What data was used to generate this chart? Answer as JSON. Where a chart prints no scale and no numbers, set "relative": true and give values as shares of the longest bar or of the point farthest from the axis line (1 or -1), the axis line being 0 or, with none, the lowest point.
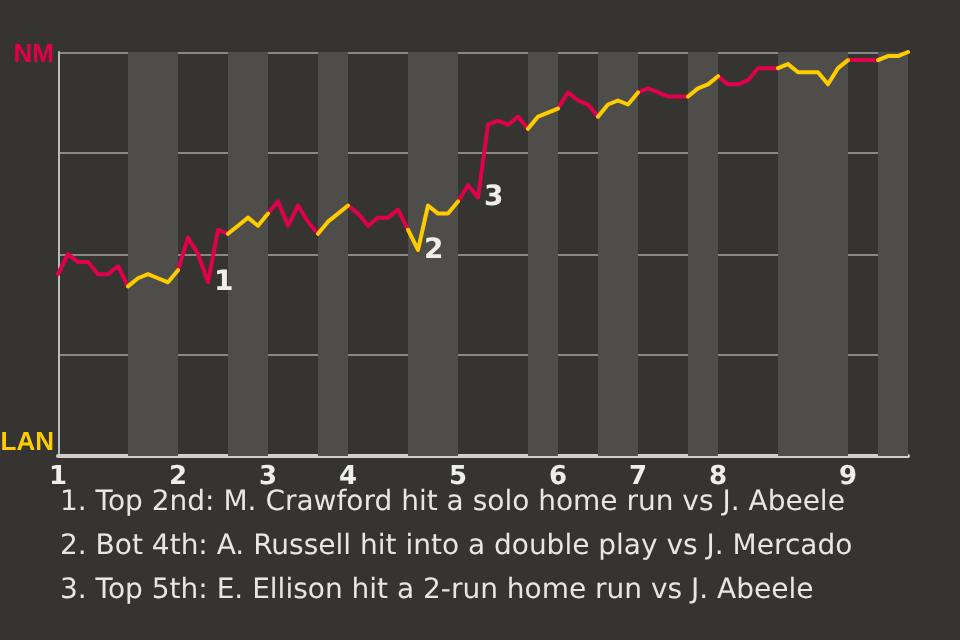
{
  "chart_data": {
    "type": "line",
    "relative": true,
    "categories": [
      "1",
      null,
      null,
      null,
      null,
      null,
      null,
      null,
      null,
      null,
      null,
      null,
      "2",
      null,
      null,
      null,
      null,
      null,
      null,
      null,
      null,
      "3",
      null,
      null,
      null,
      null,
      null,
      null,
      null,
      "4",
      null,
      null,
      null,
      null,
      null,
      null,
      null,
      null,
      null,
      null,
      "5",
      null,
      null,
      null,
      null,
      null,
      null,
      null,
      null,
      null,
      "6",
      null,
      null,
      null,
      null,
      null,
      null,
      null,
      "7",
      null,
      null,
      null,
      null,
      null,
      null,
      null,
      "8",
      null,
      null,
      null,
      null,
      null,
      null,
      null,
      null,
      null,
      null,
      null,
      null,
      "9",
      null,
      null,
      null,
      null,
      null,
      null
    ],
    "grid": "y",
    "marker": "none",
    "line_style": "solid",
    "series": [
      {
        "color": "#e0004d",
        "values": [
          0.45,
          0.5,
          0.48,
          0.48,
          0.45,
          0.45,
          0.47,
          0.42,
          null,
          null,
          null,
          null,
          0.46,
          0.54,
          0.5,
          0.43,
          0.56,
          0.55,
          null,
          null,
          null,
          0.6,
          0.63,
          0.57,
          0.62,
          0.58,
          0.55,
          null,
          null,
          0.62,
          0.6,
          0.57,
          0.59,
          0.59,
          0.61,
          0.56,
          null,
          null,
          null,
          null,
          0.63,
          0.67,
          0.64,
          0.82,
          0.83,
          0.82,
          0.84,
          0.81,
          null,
          null,
          0.86,
          0.9,
          0.88,
          0.87,
          0.84,
          null,
          null,
          null,
          0.9,
          0.91,
          0.9,
          0.89,
          0.89,
          0.89,
          null,
          null,
          0.94,
          0.92,
          0.92,
          0.93,
          0.96,
          0.96,
          0.96,
          null,
          null,
          null,
          null,
          null,
          null,
          0.98,
          0.98,
          0.98,
          0.98,
          null,
          null,
          null
        ]
      },
      {
        "color": "#ffcc00",
        "values": [
          null,
          null,
          null,
          null,
          null,
          null,
          null,
          0.42,
          0.44,
          0.45,
          0.44,
          0.43,
          0.46,
          null,
          null,
          null,
          null,
          0.55,
          0.57,
          0.59,
          0.57,
          0.6,
          null,
          null,
          null,
          null,
          0.55,
          0.58,
          0.6,
          0.62,
          null,
          null,
          null,
          null,
          null,
          0.56,
          0.51,
          0.62,
          0.6,
          0.6,
          0.63,
          null,
          null,
          null,
          null,
          null,
          null,
          0.81,
          0.84,
          0.85,
          0.86,
          null,
          null,
          null,
          0.84,
          0.87,
          0.88,
          0.87,
          0.9,
          null,
          null,
          null,
          null,
          0.89,
          0.91,
          0.92,
          0.94,
          null,
          null,
          null,
          null,
          null,
          0.96,
          0.97,
          0.95,
          0.95,
          0.95,
          0.92,
          0.96,
          0.98,
          null,
          null,
          0.98,
          0.99,
          0.99,
          1
        ]
      }
    ],
    "annotations": [
      "NM",
      "LAN",
      "1",
      "2",
      "3",
      "1. Top 2nd: M. Crawford hit a solo home run vs J. Abeele",
      "2. Bot 4th: A. Russell hit into a double play vs J. Mercado",
      "3. Top 5th: E. Ellison hit a 2-run home run vs J. Abeele"
    ]
  }
}
